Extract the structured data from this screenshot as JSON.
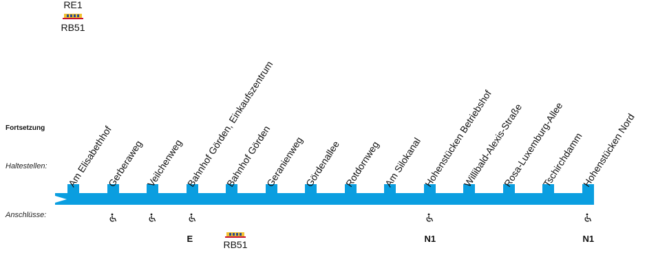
{
  "top_connections": [
    "RE1",
    "RB51"
  ],
  "labels": {
    "fortsetzung": "Fortsetzung",
    "haltestellen": "Haltestellen:",
    "anschluesse": "Anschlüsse:"
  },
  "line_color": "#0a9ee0",
  "stops": [
    {
      "name": "Am Elisabethhof",
      "accessible": false,
      "connection": ""
    },
    {
      "name": "Gerberaweg",
      "accessible": true,
      "connection": ""
    },
    {
      "name": "Veilchenweg",
      "accessible": true,
      "connection": ""
    },
    {
      "name": "Bahnhof Görden, Einkaufszentrum",
      "accessible": true,
      "connection": "E"
    },
    {
      "name": "Bahnhof Görden",
      "accessible": false,
      "connection": "RB51"
    },
    {
      "name": "Geranienweg",
      "accessible": false,
      "connection": ""
    },
    {
      "name": "Gördenallee",
      "accessible": false,
      "connection": ""
    },
    {
      "name": "Rotdornweg",
      "accessible": false,
      "connection": ""
    },
    {
      "name": "Am Silokanal",
      "accessible": false,
      "connection": ""
    },
    {
      "name": "Hohenstücken Betriebshof",
      "accessible": true,
      "connection": "N1"
    },
    {
      "name": "Willibald-Alexis-Straße",
      "accessible": false,
      "connection": ""
    },
    {
      "name": "Rosa-Luxemburg-Allee",
      "accessible": false,
      "connection": ""
    },
    {
      "name": "Tschirchdamm",
      "accessible": false,
      "connection": ""
    },
    {
      "name": "Hohenstücken Nord",
      "accessible": true,
      "connection": "N1"
    }
  ]
}
